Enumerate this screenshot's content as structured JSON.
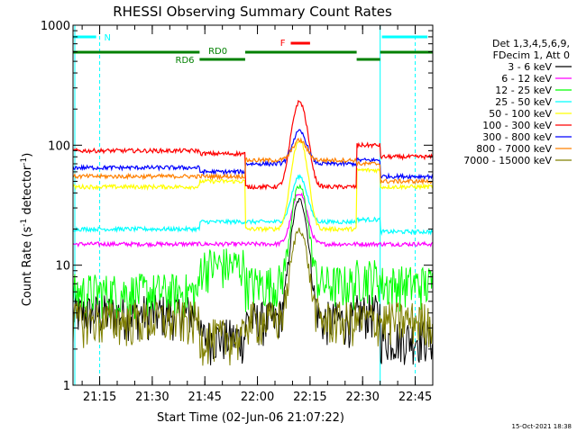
{
  "chart_data": {
    "type": "line",
    "title": "RHESSI Observing Summary Count Rates",
    "xlabel": "Start Time (02-Jun-06 21:07:22)",
    "ylabel": "Count Rate (s",
    "ylabel_sup": "-1",
    "ylabel_rest": " detector",
    "ylabel_sup2": "-1",
    "ylabel_end": ")",
    "yscale": "log",
    "ylim": [
      1,
      1000
    ],
    "xlim_minutes": [
      67.4,
      170
    ],
    "y_ticks": [
      {
        "v": 1,
        "label": "1"
      },
      {
        "v": 10,
        "label": "10"
      },
      {
        "v": 100,
        "label": "100"
      },
      {
        "v": 1000,
        "label": "1000"
      }
    ],
    "x_ticks": [
      {
        "m": 75,
        "label": "21:15"
      },
      {
        "m": 90,
        "label": "21:30"
      },
      {
        "m": 105,
        "label": "21:45"
      },
      {
        "m": 120,
        "label": "22:00"
      },
      {
        "m": 135,
        "label": "22:15"
      },
      {
        "m": 150,
        "label": "22:30"
      },
      {
        "m": 165,
        "label": "22:45"
      }
    ],
    "legend_header": [
      "Det 1,3,4,5,6,9,",
      "FDecim 1, Att 0"
    ],
    "series": [
      {
        "name": "3 - 6 keV",
        "color": "#000000",
        "base": [
          4,
          2.5,
          3.5,
          4,
          2.5
        ],
        "peak": 35
      },
      {
        "name": "6 - 12 keV",
        "color": "#ff00ff",
        "base": [
          15,
          15,
          15,
          15,
          15
        ],
        "peak": 40
      },
      {
        "name": "12 - 25 keV",
        "color": "#00ff00",
        "base": [
          6,
          10,
          7,
          8,
          7
        ],
        "peak": 45
      },
      {
        "name": "25 - 50 keV",
        "color": "#00ffff",
        "base": [
          20,
          23,
          23,
          24,
          19
        ],
        "peak": 55
      },
      {
        "name": "50 - 100 keV",
        "color": "#ffff00",
        "base": [
          45,
          50,
          20,
          62,
          45
        ],
        "peak": 110
      },
      {
        "name": "100 - 300 keV",
        "color": "#ff0000",
        "base": [
          90,
          85,
          45,
          100,
          80
        ],
        "peak": 230
      },
      {
        "name": "300 - 800 keV",
        "color": "#0000ff",
        "base": [
          65,
          60,
          70,
          75,
          55
        ],
        "peak": 130
      },
      {
        "name": "800 - 7000 keV",
        "color": "#ff8000",
        "base": [
          55,
          55,
          75,
          70,
          50
        ],
        "peak": 110
      },
      {
        "name": "7000 - 15000 keV",
        "color": "#808000",
        "base": [
          3.5,
          2.5,
          3.5,
          3.5,
          3.5
        ],
        "peak": 20
      }
    ],
    "segments_minutes": [
      [
        67.4,
        103.5
      ],
      [
        103.5,
        116.5
      ],
      [
        116.5,
        148.3
      ],
      [
        148.3,
        155
      ],
      [
        155,
        170
      ]
    ],
    "flare_peak_minute": 132,
    "annotations": {
      "N_label": "N",
      "F_label": "F",
      "RD0_label": "RD0",
      "RD6_label": "RD6"
    },
    "night_markers_minutes": [
      75,
      155,
      165
    ],
    "footer_date": "15-Oct-2021 18:38"
  },
  "colors": {
    "cyan": "#00ffff",
    "green_bar": "#008000",
    "flare_red": "#ff0000"
  }
}
